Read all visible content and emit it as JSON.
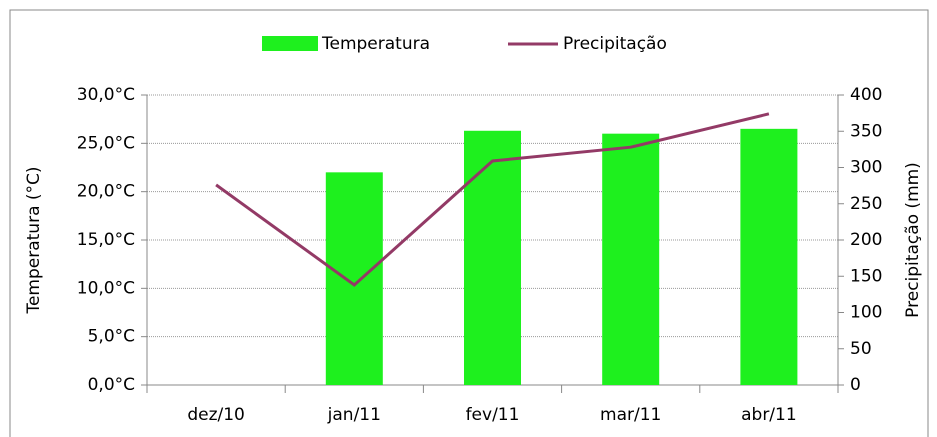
{
  "chart_data": {
    "type": "bar",
    "categories": [
      "dez/10",
      "jan/11",
      "fev/11",
      "mar/11",
      "abr/11"
    ],
    "series": [
      {
        "name": "Temperatura",
        "type": "bar",
        "color": "#1ef01e",
        "values": [
          null,
          22.0,
          26.3,
          26.0,
          26.5
        ]
      },
      {
        "name": "Precipitação",
        "type": "line",
        "axis": "y2",
        "color": "#933a66",
        "values": [
          276,
          138,
          309,
          328,
          374
        ]
      }
    ],
    "ylabel": "Temperatura (°C)",
    "y2label": "Precipitação (mm)",
    "ylim": [
      0,
      30
    ],
    "yticks": [
      {
        "value": 0,
        "label": "0,0°C"
      },
      {
        "value": 5,
        "label": "5,0°C"
      },
      {
        "value": 10,
        "label": "10,0°C"
      },
      {
        "value": 15,
        "label": "15,0°C"
      },
      {
        "value": 20,
        "label": "20,0°C"
      },
      {
        "value": 25,
        "label": "25,0°C"
      },
      {
        "value": 30,
        "label": "30,0°C"
      }
    ],
    "y2lim": [
      0,
      400
    ],
    "y2ticks": [
      0,
      50,
      100,
      150,
      200,
      250,
      300,
      350,
      400
    ],
    "grid": true,
    "legend": "top"
  }
}
